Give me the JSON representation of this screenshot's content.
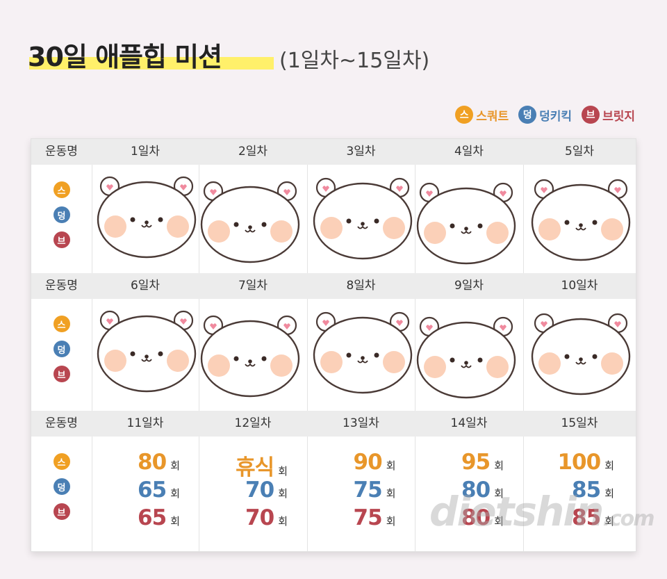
{
  "title": {
    "main": "30일 애플힙 미션",
    "sub": "(1일차~15일차)"
  },
  "legend": [
    {
      "badge": "스",
      "label": "스쿼트",
      "color": "#f0a023"
    },
    {
      "badge": "덩",
      "label": "덩키킥",
      "color": "#4a7fb4"
    },
    {
      "badge": "브",
      "label": "브릿지",
      "color": "#b84650"
    }
  ],
  "header_label": "운동명",
  "rows": [
    {
      "days": [
        "1일차",
        "2일차",
        "3일차",
        "4일차",
        "5일차"
      ]
    },
    {
      "days": [
        "6일차",
        "7일차",
        "8일차",
        "9일차",
        "10일차"
      ]
    },
    {
      "days": [
        "11일차",
        "12일차",
        "13일차",
        "14일차",
        "15일차"
      ]
    }
  ],
  "badges": [
    "스",
    "덩",
    "브"
  ],
  "unit": "회",
  "counts": [
    {
      "squat": "80",
      "donkey": "65",
      "bridge": "65"
    },
    {
      "squat": "휴식",
      "donkey": "70",
      "bridge": "70"
    },
    {
      "squat": "90",
      "donkey": "75",
      "bridge": "75"
    },
    {
      "squat": "95",
      "donkey": "80",
      "bridge": "80"
    },
    {
      "squat": "100",
      "donkey": "85",
      "bridge": "85"
    }
  ],
  "colors": {
    "squat": "#e8962a",
    "donkey": "#4a7fb4",
    "bridge": "#b84650"
  },
  "watermark": {
    "main": "dietshin",
    "suffix": ".com"
  }
}
